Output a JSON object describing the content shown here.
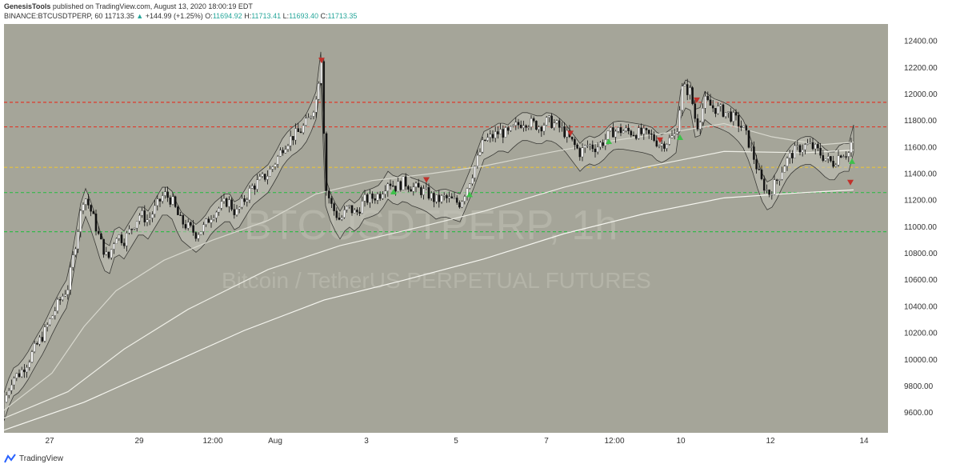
{
  "header": {
    "publisher": "GenesisTools",
    "published_text": "published on TradingView.com, August 13, 2020 18:00:19 EDT",
    "symbol": "BINANCE:BTCUSDTPERP, 60",
    "last": "11713.35",
    "change": "+144.99 (+1.25%)",
    "o_label": "O:",
    "o_value": "11694.92",
    "h_label": "H:",
    "h_value": "11713.41",
    "l_label": "L:",
    "l_value": "11693.40",
    "c_label": "C:",
    "c_value": "11713.35"
  },
  "watermark": {
    "symbol": "BTCUSDTPERP, 1h",
    "description": "Bitcoin / TetherUS PERPETUAL FUTURES"
  },
  "footer": {
    "brand": "TradingView"
  },
  "colors": {
    "background": "#a5a599",
    "candle_up": "#ffffff",
    "candle_down": "#111111",
    "resistance": "#e0392b",
    "midline": "#e8c43a",
    "support": "#35b84a"
  },
  "chart_data": {
    "type": "line",
    "title": "",
    "xlabel": "",
    "ylabel": "",
    "ylim": [
      9450,
      12530
    ],
    "y_ticks": [
      "12400.00",
      "12200.00",
      "12000.00",
      "11800.00",
      "11600.00",
      "11400.00",
      "11200.00",
      "11000.00",
      "10800.00",
      "10600.00",
      "10400.00",
      "10200.00",
      "10000.00",
      "9800.00",
      "9600.00"
    ],
    "x_ticks": [
      "27",
      "29",
      "12:00",
      "Aug",
      "3",
      "5",
      "7",
      "12:00",
      "10",
      "12",
      "14"
    ],
    "horizontal_levels": [
      {
        "value": 11940,
        "color": "#e0392b"
      },
      {
        "value": 11755,
        "color": "#e0392b"
      },
      {
        "value": 11450,
        "color": "#e8c43a"
      },
      {
        "value": 11260,
        "color": "#35b84a"
      },
      {
        "value": 10965,
        "color": "#35b84a"
      }
    ],
    "price_path": [
      [
        0,
        9680
      ],
      [
        10,
        9860
      ],
      [
        20,
        9900
      ],
      [
        30,
        9990
      ],
      [
        40,
        10100
      ],
      [
        50,
        10200
      ],
      [
        60,
        10330
      ],
      [
        70,
        10450
      ],
      [
        80,
        10550
      ],
      [
        90,
        10900
      ],
      [
        100,
        11250
      ],
      [
        110,
        11100
      ],
      [
        120,
        10900
      ],
      [
        130,
        10750
      ],
      [
        140,
        10950
      ],
      [
        150,
        10900
      ],
      [
        160,
        11000
      ],
      [
        170,
        11100
      ],
      [
        180,
        11050
      ],
      [
        190,
        11150
      ],
      [
        200,
        11250
      ],
      [
        210,
        11200
      ],
      [
        220,
        11050
      ],
      [
        230,
        11000
      ],
      [
        240,
        10950
      ],
      [
        250,
        11000
      ],
      [
        260,
        11100
      ],
      [
        270,
        11150
      ],
      [
        280,
        11200
      ],
      [
        290,
        11100
      ],
      [
        300,
        11200
      ],
      [
        310,
        11300
      ],
      [
        320,
        11350
      ],
      [
        330,
        11400
      ],
      [
        340,
        11500
      ],
      [
        350,
        11620
      ],
      [
        360,
        11680
      ],
      [
        370,
        11720
      ],
      [
        380,
        11800
      ],
      [
        390,
        11950
      ],
      [
        397,
        12300
      ],
      [
        402,
        11300
      ],
      [
        410,
        11150
      ],
      [
        420,
        11050
      ],
      [
        430,
        11150
      ],
      [
        440,
        11100
      ],
      [
        450,
        11200
      ],
      [
        460,
        11220
      ],
      [
        470,
        11250
      ],
      [
        480,
        11350
      ],
      [
        490,
        11300
      ],
      [
        500,
        11340
      ],
      [
        510,
        11300
      ],
      [
        520,
        11280
      ],
      [
        530,
        11250
      ],
      [
        540,
        11200
      ],
      [
        550,
        11220
      ],
      [
        560,
        11200
      ],
      [
        570,
        11180
      ],
      [
        580,
        11320
      ],
      [
        590,
        11480
      ],
      [
        600,
        11650
      ],
      [
        610,
        11680
      ],
      [
        620,
        11720
      ],
      [
        630,
        11700
      ],
      [
        640,
        11760
      ],
      [
        650,
        11800
      ],
      [
        660,
        11780
      ],
      [
        670,
        11760
      ],
      [
        680,
        11800
      ],
      [
        690,
        11770
      ],
      [
        700,
        11720
      ],
      [
        710,
        11640
      ],
      [
        720,
        11560
      ],
      [
        730,
        11620
      ],
      [
        740,
        11600
      ],
      [
        750,
        11650
      ],
      [
        760,
        11720
      ],
      [
        770,
        11730
      ],
      [
        780,
        11720
      ],
      [
        790,
        11710
      ],
      [
        800,
        11700
      ],
      [
        810,
        11680
      ],
      [
        820,
        11620
      ],
      [
        830,
        11650
      ],
      [
        840,
        11700
      ],
      [
        848,
        12050
      ],
      [
        858,
        12020
      ],
      [
        866,
        11750
      ],
      [
        876,
        11950
      ],
      [
        886,
        11900
      ],
      [
        896,
        11880
      ],
      [
        906,
        11850
      ],
      [
        916,
        11800
      ],
      [
        926,
        11720
      ],
      [
        936,
        11550
      ],
      [
        946,
        11350
      ],
      [
        956,
        11250
      ],
      [
        966,
        11350
      ],
      [
        976,
        11480
      ],
      [
        986,
        11560
      ],
      [
        996,
        11600
      ],
      [
        1006,
        11620
      ],
      [
        1016,
        11580
      ],
      [
        1026,
        11520
      ],
      [
        1036,
        11480
      ],
      [
        1046,
        11560
      ],
      [
        1056,
        11560
      ],
      [
        1062,
        11700
      ]
    ],
    "ema_50": [
      [
        0,
        9620
      ],
      [
        60,
        9900
      ],
      [
        100,
        10250
      ],
      [
        140,
        10520
      ],
      [
        200,
        10750
      ],
      [
        260,
        10900
      ],
      [
        330,
        11050
      ],
      [
        390,
        11250
      ],
      [
        460,
        11350
      ],
      [
        530,
        11400
      ],
      [
        600,
        11460
      ],
      [
        680,
        11560
      ],
      [
        760,
        11650
      ],
      [
        840,
        11720
      ],
      [
        900,
        11780
      ],
      [
        960,
        11680
      ],
      [
        1020,
        11620
      ],
      [
        1062,
        11640
      ]
    ],
    "ema_100": [
      [
        0,
        9560
      ],
      [
        80,
        9760
      ],
      [
        150,
        10080
      ],
      [
        230,
        10380
      ],
      [
        330,
        10680
      ],
      [
        420,
        10860
      ],
      [
        520,
        11000
      ],
      [
        600,
        11120
      ],
      [
        700,
        11300
      ],
      [
        800,
        11450
      ],
      [
        900,
        11570
      ],
      [
        1000,
        11560
      ],
      [
        1062,
        11580
      ]
    ],
    "ema_200": [
      [
        0,
        9470
      ],
      [
        100,
        9680
      ],
      [
        200,
        9950
      ],
      [
        300,
        10220
      ],
      [
        400,
        10450
      ],
      [
        500,
        10600
      ],
      [
        600,
        10760
      ],
      [
        700,
        10950
      ],
      [
        800,
        11100
      ],
      [
        900,
        11220
      ],
      [
        1000,
        11260
      ],
      [
        1062,
        11280
      ]
    ],
    "sell_signals": [
      [
        397,
        12300
      ],
      [
        528,
        11400
      ],
      [
        708,
        11750
      ],
      [
        820,
        11700
      ],
      [
        866,
        12000
      ],
      [
        1058,
        11380
      ]
    ],
    "buy_signals": [
      [
        487,
        11270
      ],
      [
        582,
        11250
      ],
      [
        756,
        11650
      ],
      [
        845,
        11680
      ],
      [
        1060,
        11500
      ]
    ]
  }
}
